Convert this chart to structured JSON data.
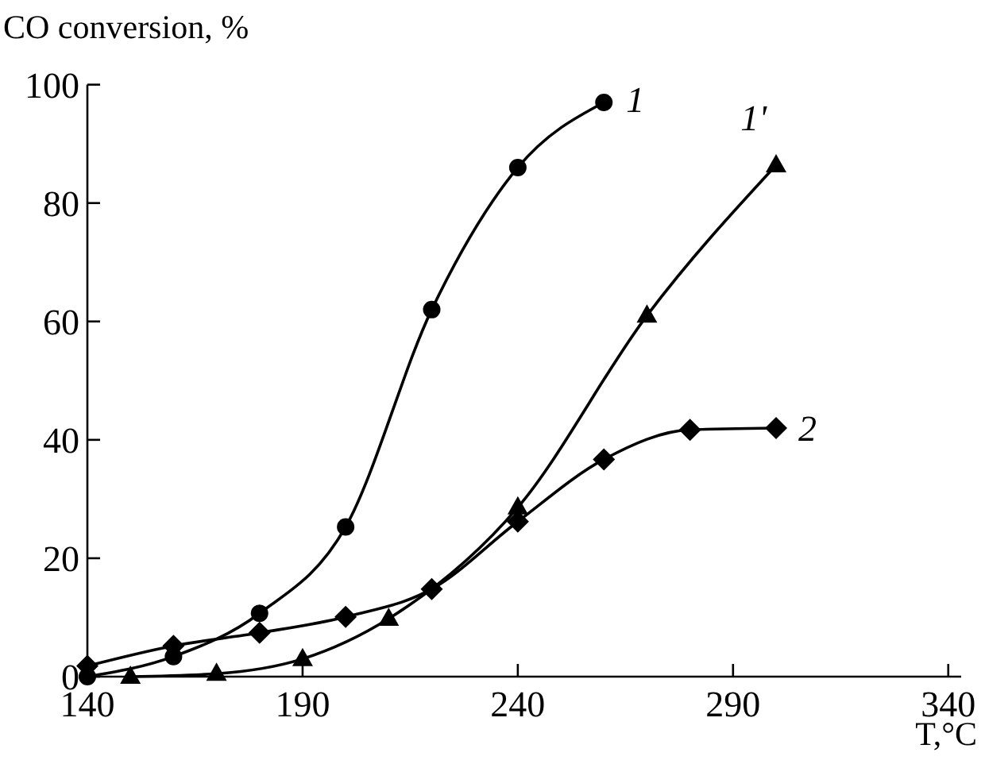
{
  "chart_data": {
    "type": "line",
    "ylabel": "CO conversion, %",
    "xlabel": "T,°C",
    "xlim": [
      140,
      343
    ],
    "xticks": [
      140,
      190,
      240,
      290,
      340
    ],
    "ylim": [
      0,
      100
    ],
    "yticks": [
      0,
      20,
      40,
      60,
      80,
      100
    ],
    "grid": false,
    "series": [
      {
        "name": "1",
        "color": "#000000",
        "marker": "circle",
        "x": [
          140,
          160,
          180,
          200,
          220,
          240,
          260
        ],
        "values": [
          0,
          3.4,
          10.7,
          25.3,
          62,
          86,
          97
        ]
      },
      {
        "name": "1'",
        "color": "#000000",
        "marker": "triangle",
        "x": [
          150,
          170,
          190,
          210,
          240,
          270,
          300
        ],
        "values": [
          0,
          0.5,
          3,
          9.8,
          28.6,
          61,
          86.4
        ]
      },
      {
        "name": "2",
        "color": "#000000",
        "marker": "diamond",
        "x": [
          140,
          160,
          180,
          200,
          220,
          240,
          260,
          280,
          300
        ],
        "values": [
          1.8,
          5.2,
          7.4,
          10.1,
          14.8,
          26.2,
          36.7,
          41.7,
          42
        ]
      }
    ]
  }
}
